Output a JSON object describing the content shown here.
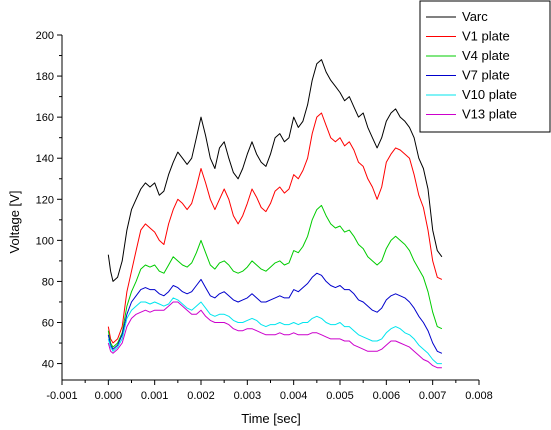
{
  "chart_data": {
    "type": "line",
    "title": "",
    "xlabel": "Time [sec]",
    "ylabel": "Voltage [V]",
    "xlim": [
      -0.001,
      0.008
    ],
    "ylim": [
      32,
      200
    ],
    "xticks": [
      "-0.001",
      "0.000",
      "0.001",
      "0.002",
      "0.003",
      "0.004",
      "0.005",
      "0.006",
      "0.007",
      "0.008"
    ],
    "yticks": [
      "40",
      "60",
      "80",
      "100",
      "120",
      "140",
      "160",
      "180",
      "200"
    ],
    "grid": false,
    "legend_position": "top-right",
    "series": [
      {
        "name": "Varc",
        "color": "#000000",
        "x": [
          0.0,
          5e-05,
          0.0001,
          0.0002,
          0.0003,
          0.0004,
          0.0005,
          0.0006,
          0.0007,
          0.0008,
          0.0009,
          0.001,
          0.0011,
          0.0012,
          0.0013,
          0.0014,
          0.0015,
          0.0016,
          0.0017,
          0.0018,
          0.0019,
          0.002,
          0.0021,
          0.0022,
          0.0023,
          0.0024,
          0.0025,
          0.0026,
          0.0027,
          0.0028,
          0.0029,
          0.003,
          0.0031,
          0.0032,
          0.0033,
          0.0034,
          0.0035,
          0.0036,
          0.0037,
          0.0038,
          0.0039,
          0.004,
          0.0041,
          0.0042,
          0.0043,
          0.0044,
          0.0045,
          0.0046,
          0.0047,
          0.0048,
          0.0049,
          0.005,
          0.0051,
          0.0052,
          0.0053,
          0.0054,
          0.0055,
          0.0056,
          0.0057,
          0.0058,
          0.0059,
          0.006,
          0.0061,
          0.0062,
          0.0063,
          0.0064,
          0.0065,
          0.0066,
          0.0067,
          0.0068,
          0.0069,
          0.007,
          0.0071,
          0.0072
        ],
        "values": [
          93,
          85,
          80,
          82,
          90,
          105,
          115,
          120,
          125,
          128,
          126,
          128,
          122,
          124,
          132,
          138,
          143,
          140,
          137,
          140,
          150,
          160,
          151,
          140,
          135,
          145,
          148,
          140,
          133,
          130,
          135,
          142,
          148,
          142,
          138,
          136,
          142,
          150,
          152,
          148,
          150,
          160,
          155,
          158,
          166,
          178,
          186,
          188,
          182,
          178,
          175,
          172,
          168,
          170,
          165,
          160,
          162,
          155,
          150,
          145,
          150,
          158,
          162,
          164,
          160,
          158,
          155,
          150,
          140,
          135,
          125,
          105,
          95,
          92
        ]
      },
      {
        "name": "V1 plate",
        "color": "#ff0000",
        "x": [
          0.0,
          5e-05,
          0.0001,
          0.0002,
          0.0003,
          0.0004,
          0.0005,
          0.0006,
          0.0007,
          0.0008,
          0.0009,
          0.001,
          0.0011,
          0.0012,
          0.0013,
          0.0014,
          0.0015,
          0.0016,
          0.0017,
          0.0018,
          0.0019,
          0.002,
          0.0021,
          0.0022,
          0.0023,
          0.0024,
          0.0025,
          0.0026,
          0.0027,
          0.0028,
          0.0029,
          0.003,
          0.0031,
          0.0032,
          0.0033,
          0.0034,
          0.0035,
          0.0036,
          0.0037,
          0.0038,
          0.0039,
          0.004,
          0.0041,
          0.0042,
          0.0043,
          0.0044,
          0.0045,
          0.0046,
          0.0047,
          0.0048,
          0.0049,
          0.005,
          0.0051,
          0.0052,
          0.0053,
          0.0054,
          0.0055,
          0.0056,
          0.0057,
          0.0058,
          0.0059,
          0.006,
          0.0061,
          0.0062,
          0.0063,
          0.0064,
          0.0065,
          0.0066,
          0.0067,
          0.0068,
          0.0069,
          0.007,
          0.0071,
          0.0072
        ],
        "values": [
          58,
          52,
          50,
          52,
          58,
          75,
          85,
          95,
          105,
          108,
          106,
          104,
          100,
          98,
          108,
          115,
          120,
          118,
          115,
          118,
          126,
          135,
          128,
          120,
          115,
          120,
          125,
          120,
          112,
          108,
          112,
          118,
          125,
          121,
          116,
          114,
          118,
          124,
          126,
          123,
          125,
          132,
          130,
          134,
          140,
          152,
          160,
          162,
          156,
          150,
          148,
          150,
          146,
          148,
          144,
          138,
          136,
          130,
          126,
          120,
          126,
          138,
          142,
          145,
          144,
          142,
          140,
          132,
          122,
          116,
          105,
          90,
          82,
          81
        ]
      },
      {
        "name": "V4 plate",
        "color": "#00cc00",
        "x": [
          0.0,
          5e-05,
          0.0001,
          0.0002,
          0.0003,
          0.0004,
          0.0005,
          0.0006,
          0.0007,
          0.0008,
          0.0009,
          0.001,
          0.0011,
          0.0012,
          0.0013,
          0.0014,
          0.0015,
          0.0016,
          0.0017,
          0.0018,
          0.0019,
          0.002,
          0.0021,
          0.0022,
          0.0023,
          0.0024,
          0.0025,
          0.0026,
          0.0027,
          0.0028,
          0.0029,
          0.003,
          0.0031,
          0.0032,
          0.0033,
          0.0034,
          0.0035,
          0.0036,
          0.0037,
          0.0038,
          0.0039,
          0.004,
          0.0041,
          0.0042,
          0.0043,
          0.0044,
          0.0045,
          0.0046,
          0.0047,
          0.0048,
          0.0049,
          0.005,
          0.0051,
          0.0052,
          0.0053,
          0.0054,
          0.0055,
          0.0056,
          0.0057,
          0.0058,
          0.0059,
          0.006,
          0.0061,
          0.0062,
          0.0063,
          0.0064,
          0.0065,
          0.0066,
          0.0067,
          0.0068,
          0.0069,
          0.007,
          0.0071,
          0.0072
        ],
        "values": [
          56,
          50,
          48,
          50,
          55,
          68,
          75,
          80,
          86,
          88,
          87,
          88,
          85,
          84,
          88,
          92,
          90,
          88,
          87,
          89,
          94,
          100,
          94,
          88,
          86,
          89,
          90,
          88,
          85,
          84,
          85,
          87,
          90,
          88,
          86,
          85,
          87,
          89,
          90,
          88,
          89,
          95,
          94,
          97,
          102,
          110,
          115,
          117,
          112,
          108,
          106,
          107,
          104,
          105,
          102,
          98,
          96,
          92,
          90,
          88,
          90,
          96,
          100,
          102,
          100,
          98,
          95,
          90,
          86,
          82,
          75,
          65,
          58,
          57
        ]
      },
      {
        "name": "V7 plate",
        "color": "#0000cc",
        "x": [
          0.0,
          5e-05,
          0.0001,
          0.0002,
          0.0003,
          0.0004,
          0.0005,
          0.0006,
          0.0007,
          0.0008,
          0.0009,
          0.001,
          0.0011,
          0.0012,
          0.0013,
          0.0014,
          0.0015,
          0.0016,
          0.0017,
          0.0018,
          0.0019,
          0.002,
          0.0021,
          0.0022,
          0.0023,
          0.0024,
          0.0025,
          0.0026,
          0.0027,
          0.0028,
          0.0029,
          0.003,
          0.0031,
          0.0032,
          0.0033,
          0.0034,
          0.0035,
          0.0036,
          0.0037,
          0.0038,
          0.0039,
          0.004,
          0.0041,
          0.0042,
          0.0043,
          0.0044,
          0.0045,
          0.0046,
          0.0047,
          0.0048,
          0.0049,
          0.005,
          0.0051,
          0.0052,
          0.0053,
          0.0054,
          0.0055,
          0.0056,
          0.0057,
          0.0058,
          0.0059,
          0.006,
          0.0061,
          0.0062,
          0.0063,
          0.0064,
          0.0065,
          0.0066,
          0.0067,
          0.0068,
          0.0069,
          0.007,
          0.0071,
          0.0072
        ],
        "values": [
          54,
          49,
          47,
          49,
          54,
          64,
          70,
          73,
          76,
          77,
          76,
          76,
          74,
          73,
          75,
          78,
          77,
          75,
          74,
          75,
          78,
          81,
          77,
          73,
          72,
          74,
          75,
          73,
          71,
          70,
          71,
          72,
          74,
          72,
          70,
          70,
          71,
          72,
          73,
          72,
          72,
          76,
          75,
          77,
          79,
          82,
          84,
          83,
          80,
          78,
          77,
          78,
          76,
          76,
          74,
          71,
          70,
          68,
          66,
          65,
          67,
          71,
          73,
          74,
          73,
          72,
          70,
          67,
          63,
          60,
          56,
          50,
          46,
          45
        ]
      },
      {
        "name": "V10 plate",
        "color": "#00e5ee",
        "x": [
          0.0,
          5e-05,
          0.0001,
          0.0002,
          0.0003,
          0.0004,
          0.0005,
          0.0006,
          0.0007,
          0.0008,
          0.0009,
          0.001,
          0.0011,
          0.0012,
          0.0013,
          0.0014,
          0.0015,
          0.0016,
          0.0017,
          0.0018,
          0.0019,
          0.002,
          0.0021,
          0.0022,
          0.0023,
          0.0024,
          0.0025,
          0.0026,
          0.0027,
          0.0028,
          0.0029,
          0.003,
          0.0031,
          0.0032,
          0.0033,
          0.0034,
          0.0035,
          0.0036,
          0.0037,
          0.0038,
          0.0039,
          0.004,
          0.0041,
          0.0042,
          0.0043,
          0.0044,
          0.0045,
          0.0046,
          0.0047,
          0.0048,
          0.0049,
          0.005,
          0.0051,
          0.0052,
          0.0053,
          0.0054,
          0.0055,
          0.0056,
          0.0057,
          0.0058,
          0.0059,
          0.006,
          0.0061,
          0.0062,
          0.0063,
          0.0064,
          0.0065,
          0.0066,
          0.0067,
          0.0068,
          0.0069,
          0.007,
          0.0071,
          0.0072
        ],
        "values": [
          52,
          48,
          46,
          48,
          52,
          62,
          66,
          68,
          70,
          70,
          69,
          70,
          69,
          68,
          69,
          72,
          71,
          69,
          67,
          66,
          68,
          70,
          67,
          64,
          63,
          64,
          64,
          63,
          61,
          60,
          60,
          61,
          62,
          61,
          59,
          58,
          59,
          59,
          60,
          59,
          59,
          60,
          59,
          60,
          60,
          62,
          63,
          62,
          60,
          59,
          59,
          60,
          58,
          58,
          56,
          54,
          53,
          52,
          51,
          51,
          52,
          55,
          57,
          58,
          57,
          55,
          54,
          52,
          49,
          47,
          45,
          42,
          40,
          40
        ]
      },
      {
        "name": "V13 plate",
        "color": "#cc00cc",
        "x": [
          0.0,
          5e-05,
          0.0001,
          0.0002,
          0.0003,
          0.0004,
          0.0005,
          0.0006,
          0.0007,
          0.0008,
          0.0009,
          0.001,
          0.0011,
          0.0012,
          0.0013,
          0.0014,
          0.0015,
          0.0016,
          0.0017,
          0.0018,
          0.0019,
          0.002,
          0.0021,
          0.0022,
          0.0023,
          0.0024,
          0.0025,
          0.0026,
          0.0027,
          0.0028,
          0.0029,
          0.003,
          0.0031,
          0.0032,
          0.0033,
          0.0034,
          0.0035,
          0.0036,
          0.0037,
          0.0038,
          0.0039,
          0.004,
          0.0041,
          0.0042,
          0.0043,
          0.0044,
          0.0045,
          0.0046,
          0.0047,
          0.0048,
          0.0049,
          0.005,
          0.0051,
          0.0052,
          0.0053,
          0.0054,
          0.0055,
          0.0056,
          0.0057,
          0.0058,
          0.0059,
          0.006,
          0.0061,
          0.0062,
          0.0063,
          0.0064,
          0.0065,
          0.0066,
          0.0067,
          0.0068,
          0.0069,
          0.007,
          0.0071,
          0.0072
        ],
        "values": [
          50,
          46,
          45,
          47,
          50,
          58,
          62,
          64,
          65,
          66,
          65,
          66,
          66,
          66,
          68,
          70,
          70,
          68,
          66,
          64,
          64,
          66,
          63,
          61,
          60,
          60,
          60,
          59,
          57,
          56,
          56,
          57,
          57,
          56,
          55,
          54,
          54,
          54,
          55,
          54,
          54,
          55,
          54,
          54,
          54,
          55,
          55,
          54,
          53,
          52,
          52,
          52,
          51,
          51,
          49,
          48,
          47,
          46,
          46,
          46,
          47,
          49,
          51,
          51,
          50,
          49,
          48,
          46,
          44,
          42,
          41,
          39,
          38,
          38
        ]
      }
    ]
  }
}
